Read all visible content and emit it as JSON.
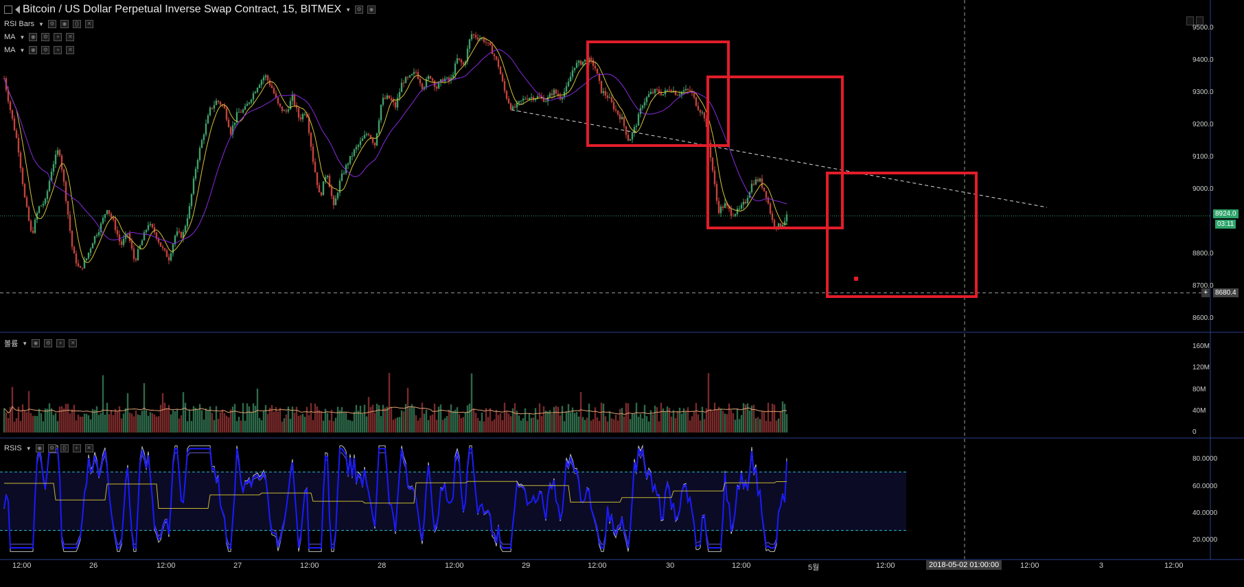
{
  "header": {
    "title": "Bitcoin / US Dollar Perpetual Inverse Swap Contract, 15, BITMEX",
    "indicators": [
      "RSI Bars",
      "MA",
      "MA"
    ]
  },
  "volume_pane": {
    "label": "볼륨"
  },
  "rsi_pane": {
    "label": "RSIS"
  },
  "price_axis": {
    "ticks": [
      "9500.0",
      "9400.0",
      "9300.0",
      "9200.0",
      "9100.0",
      "9000.0",
      "8900.0",
      "8800.0",
      "8700.0",
      "8600.0"
    ],
    "last_price": "8924.0",
    "countdown": "03:11",
    "crosshair_price": "8680.4"
  },
  "volume_axis": {
    "ticks": [
      "160M",
      "120M",
      "80M",
      "40M",
      "0"
    ]
  },
  "rsi_axis": {
    "ticks": [
      "80.0000",
      "60.0000",
      "40.0000",
      "20.0000"
    ]
  },
  "time_axis": {
    "labels": [
      "12:00",
      "26",
      "12:00",
      "27",
      "12:00",
      "28",
      "12:00",
      "29",
      "12:00",
      "30",
      "12:00",
      "5월",
      "12:00",
      "12:00",
      "3",
      "12:00"
    ],
    "crosshair_time": "2018-05-02 01:00:00"
  },
  "colors": {
    "up": "#3fa16a",
    "down": "#c4423c",
    "ma_fast": "#d8c53a",
    "ma_slow": "#8a2be2",
    "rsi_line": "#1a1aff",
    "annotation_box": "#e21d2a",
    "pane_border": "#2b3f8f"
  },
  "chart_data": {
    "type": "candlestick",
    "title": "Bitcoin / US Dollar Perpetual Inverse Swap Contract, 15, BITMEX",
    "timeframe": "15",
    "price_range": [
      8560,
      9560
    ],
    "volume_range": [
      0,
      170000000
    ],
    "rsi_range": [
      10,
      90
    ],
    "rsi_levels": [
      70,
      30
    ],
    "last_price": 8924.0,
    "crosshair_price": 8680.4,
    "price_path": [
      [
        0,
        9360
      ],
      [
        10,
        9250
      ],
      [
        20,
        9150
      ],
      [
        30,
        8980
      ],
      [
        40,
        8860
      ],
      [
        50,
        8950
      ],
      [
        60,
        8970
      ],
      [
        70,
        9080
      ],
      [
        80,
        9140
      ],
      [
        90,
        8980
      ],
      [
        100,
        8810
      ],
      [
        110,
        8750
      ],
      [
        120,
        8790
      ],
      [
        130,
        8850
      ],
      [
        140,
        8890
      ],
      [
        150,
        8950
      ],
      [
        160,
        8900
      ],
      [
        170,
        8830
      ],
      [
        180,
        8870
      ],
      [
        190,
        8780
      ],
      [
        200,
        8840
      ],
      [
        210,
        8900
      ],
      [
        220,
        8870
      ],
      [
        230,
        8820
      ],
      [
        240,
        8790
      ],
      [
        250,
        8870
      ],
      [
        260,
        8860
      ],
      [
        270,
        8950
      ],
      [
        280,
        9090
      ],
      [
        290,
        9180
      ],
      [
        300,
        9260
      ],
      [
        310,
        9290
      ],
      [
        320,
        9270
      ],
      [
        330,
        9190
      ],
      [
        340,
        9250
      ],
      [
        350,
        9260
      ],
      [
        360,
        9300
      ],
      [
        370,
        9340
      ],
      [
        380,
        9370
      ],
      [
        390,
        9330
      ],
      [
        400,
        9270
      ],
      [
        410,
        9250
      ],
      [
        420,
        9300
      ],
      [
        430,
        9230
      ],
      [
        440,
        9260
      ],
      [
        450,
        9100
      ],
      [
        460,
        8980
      ],
      [
        470,
        9070
      ],
      [
        480,
        8950
      ],
      [
        490,
        9040
      ],
      [
        500,
        9090
      ],
      [
        510,
        9130
      ],
      [
        520,
        9160
      ],
      [
        530,
        9190
      ],
      [
        540,
        9150
      ],
      [
        550,
        9290
      ],
      [
        560,
        9300
      ],
      [
        570,
        9270
      ],
      [
        580,
        9350
      ],
      [
        590,
        9360
      ],
      [
        600,
        9380
      ],
      [
        610,
        9330
      ],
      [
        620,
        9370
      ],
      [
        630,
        9330
      ],
      [
        640,
        9360
      ],
      [
        650,
        9350
      ],
      [
        660,
        9420
      ],
      [
        670,
        9400
      ],
      [
        680,
        9500
      ],
      [
        690,
        9490
      ],
      [
        700,
        9480
      ],
      [
        710,
        9450
      ],
      [
        720,
        9400
      ],
      [
        730,
        9310
      ],
      [
        740,
        9260
      ],
      [
        750,
        9280
      ],
      [
        760,
        9300
      ],
      [
        770,
        9300
      ],
      [
        780,
        9300
      ],
      [
        790,
        9290
      ],
      [
        800,
        9320
      ],
      [
        810,
        9300
      ],
      [
        820,
        9330
      ],
      [
        830,
        9400
      ],
      [
        840,
        9410
      ],
      [
        850,
        9420
      ],
      [
        860,
        9400
      ],
      [
        870,
        9320
      ],
      [
        880,
        9300
      ],
      [
        890,
        9260
      ],
      [
        900,
        9230
      ],
      [
        910,
        9160
      ],
      [
        920,
        9210
      ],
      [
        930,
        9280
      ],
      [
        940,
        9310
      ],
      [
        950,
        9320
      ],
      [
        960,
        9310
      ],
      [
        970,
        9330
      ],
      [
        980,
        9310
      ],
      [
        990,
        9320
      ],
      [
        1000,
        9320
      ],
      [
        1010,
        9270
      ],
      [
        1020,
        9240
      ],
      [
        1030,
        9100
      ],
      [
        1040,
        8940
      ],
      [
        1050,
        8960
      ],
      [
        1060,
        8930
      ],
      [
        1070,
        8940
      ],
      [
        1080,
        8970
      ],
      [
        1090,
        9030
      ],
      [
        1100,
        9040
      ],
      [
        1110,
        8990
      ],
      [
        1120,
        8900
      ],
      [
        1130,
        8890
      ],
      [
        1140,
        8920
      ]
    ]
  },
  "annotations": {
    "trendline": [
      [
        745,
        160
      ],
      [
        1525,
        302
      ]
    ]
  }
}
